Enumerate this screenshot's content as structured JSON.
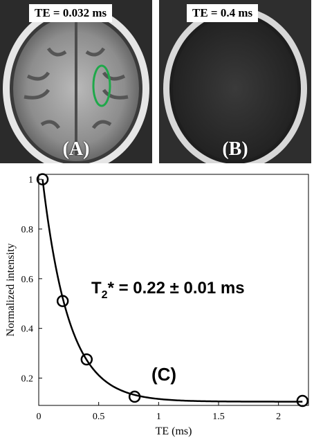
{
  "panel_a": {
    "te_label": "TE = 0.032 ms",
    "letter": "(A)",
    "roi_color": "#1fa84a"
  },
  "panel_b": {
    "te_label": "TE = 0.4 ms",
    "letter": "(B)"
  },
  "chart_data": {
    "type": "scatter",
    "panel_letter": "(C)",
    "annotation": {
      "prefix": "T",
      "subscript": "2",
      "suffix": "*  =  0.22 ± 0.01 ms"
    },
    "xlabel": "TE (ms)",
    "ylabel": "Normalized intensity",
    "xlim": [
      0,
      2.25
    ],
    "ylim": [
      0.09,
      1.02
    ],
    "xticks": [
      0,
      0.5,
      1,
      1.5,
      2
    ],
    "xtick_labels": [
      "0",
      "0.5",
      "1",
      "1.5",
      "2"
    ],
    "yticks": [
      0.2,
      0.4,
      0.6,
      0.8,
      1
    ],
    "ytick_labels": [
      "0.2",
      "0.4",
      "0.6",
      "0.8",
      "1"
    ],
    "points": {
      "x": [
        0.032,
        0.2,
        0.4,
        0.8,
        2.2
      ],
      "y": [
        1.0,
        0.51,
        0.275,
        0.125,
        0.108
      ]
    },
    "fit": {
      "t2star": 0.22,
      "baseline": 0.105
    },
    "grid": false,
    "colors": {
      "marker": "#000000",
      "curve": "#000000"
    }
  }
}
